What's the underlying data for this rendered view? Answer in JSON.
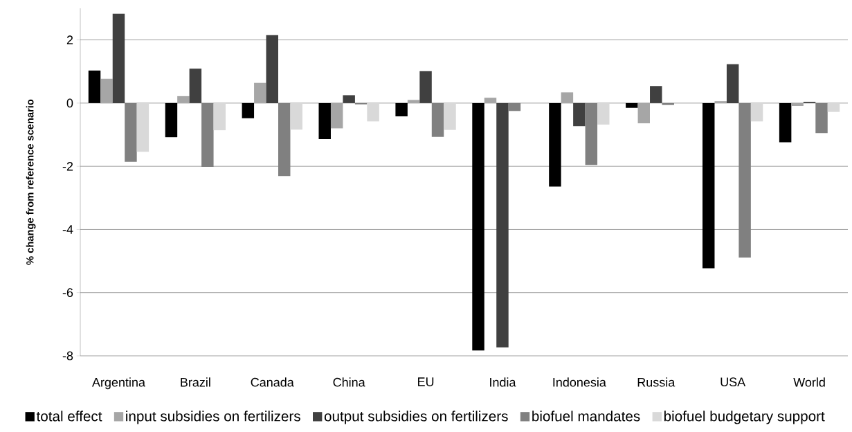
{
  "chart_data": {
    "type": "bar",
    "ylabel": "% change from reference scenario",
    "categories": [
      "Argentina",
      "Brazil",
      "Canada",
      "China",
      "EU",
      "India",
      "Indonesia",
      "Russia",
      "USA",
      "World"
    ],
    "series": [
      {
        "name": "total effect",
        "color": "#000000",
        "values": [
          1.03,
          -1.08,
          -0.48,
          -1.14,
          -0.42,
          -7.83,
          -2.64,
          -0.15,
          -5.23,
          -1.24
        ]
      },
      {
        "name": "input subsidies on fertilizers",
        "color": "#a6a6a6",
        "values": [
          0.77,
          0.22,
          0.64,
          -0.8,
          0.1,
          0.17,
          0.34,
          -0.64,
          0.06,
          -0.09
        ]
      },
      {
        "name": "output subsidies on fertilizers",
        "color": "#404040",
        "values": [
          2.83,
          1.09,
          2.15,
          0.25,
          1.01,
          -7.73,
          -0.73,
          0.54,
          1.23,
          0.04
        ]
      },
      {
        "name": "biofuel mandates",
        "color": "#808080",
        "values": [
          -1.86,
          -2.02,
          -2.31,
          -0.04,
          -1.07,
          -0.25,
          -1.96,
          -0.06,
          -4.89,
          -0.95
        ]
      },
      {
        "name": "biofuel budgetary support",
        "color": "#d9d9d9",
        "values": [
          -1.54,
          -0.86,
          -0.84,
          -0.58,
          -0.85,
          0,
          -0.68,
          0,
          -0.58,
          -0.28
        ]
      }
    ],
    "ylim": [
      -8,
      3
    ],
    "yticks": [
      -8,
      -6,
      -4,
      -2,
      0,
      2
    ],
    "grid": "y",
    "legend": "bottom"
  }
}
